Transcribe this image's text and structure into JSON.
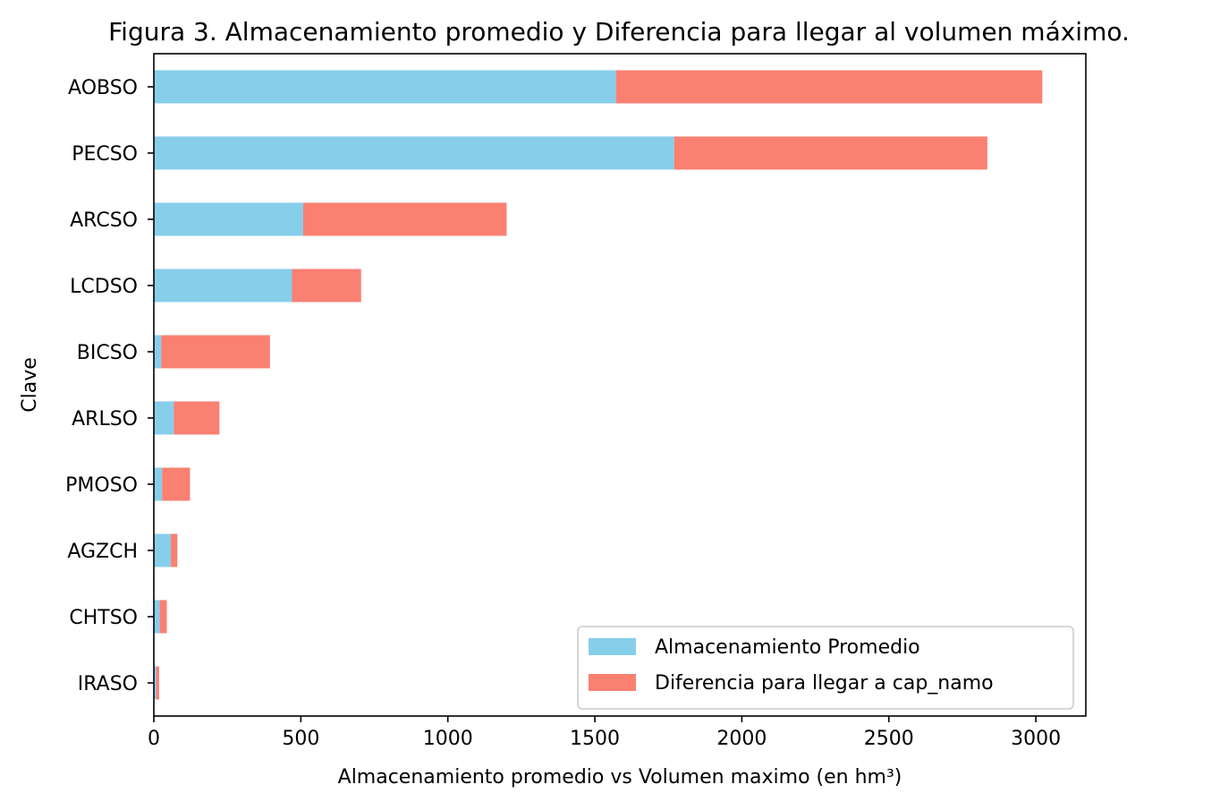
{
  "chart_data": {
    "type": "bar",
    "orientation": "horizontal",
    "stacked": true,
    "title": "Figura 3. Almacenamiento promedio y Diferencia para llegar al volumen máximo.",
    "xlabel": "Almacenamiento promedio vs Volumen maximo (en hm³)",
    "ylabel": "Clave",
    "xlim": [
      0,
      3170
    ],
    "xticks": [
      0,
      500,
      1000,
      1500,
      2000,
      2500,
      3000
    ],
    "xtick_labels": [
      "0",
      "500",
      "1000",
      "1500",
      "2000",
      "2500",
      "3000"
    ],
    "categories": [
      "AOBSO",
      "PECSO",
      "ARCSO",
      "LCDSO",
      "BICSO",
      "ARLSO",
      "PMOSO",
      "AGZCH",
      "CHTSO",
      "IRASO"
    ],
    "series": [
      {
        "name": "Almacenamiento Promedio",
        "color": "#87ceeb",
        "values": [
          1572,
          1770,
          508,
          470,
          25,
          68,
          28,
          58,
          20,
          8
        ]
      },
      {
        "name": "Diferencia para llegar a cap_namo",
        "color": "#fa8072",
        "values": [
          1450,
          1065,
          692,
          235,
          370,
          155,
          95,
          22,
          24,
          10
        ]
      }
    ],
    "grid": false,
    "legend_position": "lower-right"
  }
}
